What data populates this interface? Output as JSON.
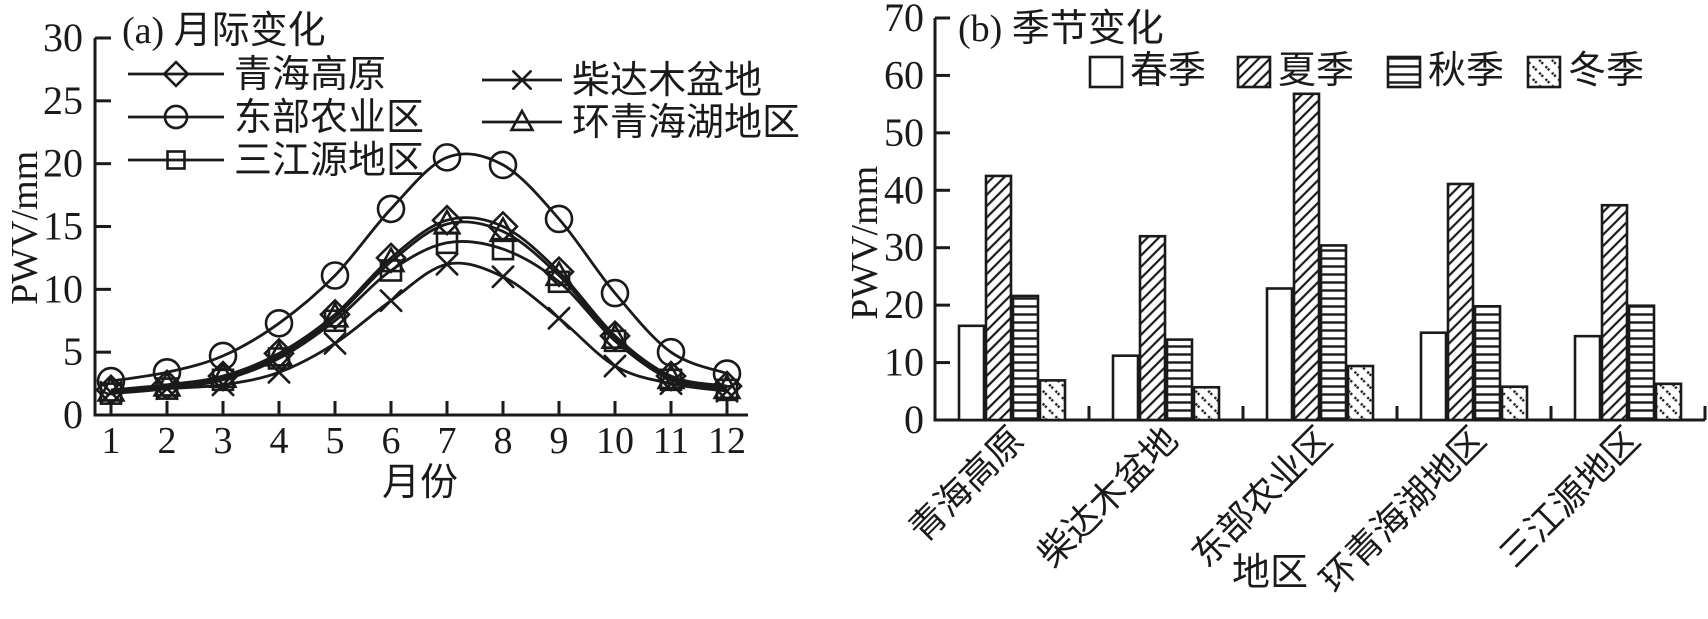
{
  "colors": {
    "ink": "#1a1a1a",
    "background": "#ffffff"
  },
  "chart_data": [
    {
      "type": "line",
      "panel": "a",
      "title": "(a) 月际变化",
      "xlabel": "月份",
      "ylabel": "PWV/mm",
      "x": [
        1,
        2,
        3,
        4,
        5,
        6,
        7,
        8,
        9,
        10,
        11,
        12
      ],
      "ylim": [
        0,
        30
      ],
      "yticks": [
        0,
        5,
        10,
        15,
        20,
        25,
        30
      ],
      "grid": false,
      "legend_position": "upper-left-two-columns",
      "series": [
        {
          "name": "青海高原",
          "marker": "diamond",
          "values": [
            2.0,
            2.4,
            3.1,
            4.9,
            8.0,
            12.5,
            15.5,
            15.0,
            11.4,
            6.3,
            3.1,
            2.3
          ]
        },
        {
          "name": "东部农业区",
          "marker": "circle",
          "values": [
            2.7,
            3.4,
            4.7,
            7.3,
            11.1,
            16.4,
            20.5,
            19.9,
            15.6,
            9.7,
            5.0,
            3.3
          ]
        },
        {
          "name": "三江源地区",
          "marker": "square",
          "values": [
            1.7,
            2.1,
            2.8,
            4.5,
            7.5,
            11.5,
            13.7,
            13.2,
            10.6,
            5.9,
            2.8,
            2.0
          ]
        },
        {
          "name": "柴达木盆地",
          "marker": "x",
          "values": [
            1.8,
            2.1,
            2.4,
            3.4,
            5.7,
            9.1,
            12.0,
            11.0,
            7.7,
            3.9,
            2.5,
            1.9
          ]
        },
        {
          "name": "环青海湖地区",
          "marker": "triangle",
          "values": [
            1.9,
            2.3,
            3.0,
            4.7,
            7.8,
            12.2,
            15.2,
            14.6,
            11.1,
            6.1,
            2.9,
            2.1
          ]
        }
      ]
    },
    {
      "type": "bar",
      "panel": "b",
      "title": "(b) 季节变化",
      "xlabel": "地区",
      "ylabel": "PWV/mm",
      "categories": [
        "青海高原",
        "柴达木盆地",
        "东部农业区",
        "环青海湖地区",
        "三江源地区"
      ],
      "ylim": [
        0,
        70
      ],
      "yticks": [
        0,
        10,
        20,
        30,
        40,
        50,
        60,
        70
      ],
      "grid": false,
      "legend_position": "top",
      "series": [
        {
          "name": "春季",
          "pattern": "plain",
          "values": [
            16.4,
            11.2,
            22.9,
            15.2,
            14.6
          ]
        },
        {
          "name": "夏季",
          "pattern": "diagonal-hatch",
          "values": [
            42.5,
            32.0,
            56.8,
            41.1,
            37.4
          ]
        },
        {
          "name": "秋季",
          "pattern": "horizontal-lines",
          "values": [
            21.6,
            14.0,
            30.4,
            19.8,
            19.9
          ]
        },
        {
          "name": "冬季",
          "pattern": "diagonal-dots",
          "values": [
            6.9,
            5.7,
            9.4,
            5.8,
            6.3
          ]
        }
      ]
    }
  ]
}
